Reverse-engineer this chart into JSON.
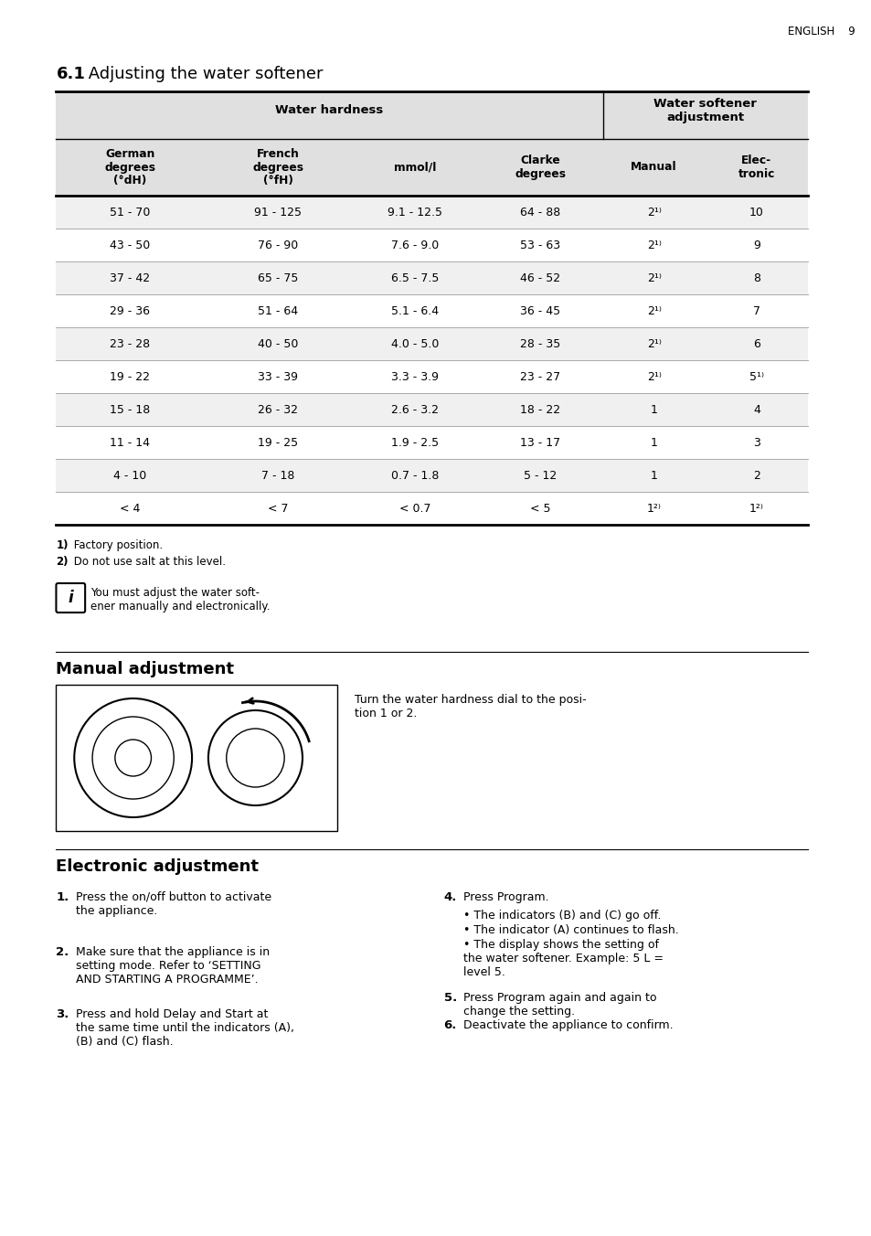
{
  "page_header": "ENGLISH    9",
  "section_title_bold": "6.1",
  "section_title_normal": " Adjusting the water softener",
  "bg_color": "#ffffff",
  "table_header_bg": "#e0e0e0",
  "table_row_bg_alt": "#f0f0f0",
  "table_row_bg_white": "#ffffff",
  "table": {
    "col_headers": [
      "German\ndegrees\n(°dH)",
      "French\ndegrees\n(°fH)",
      "mmol/l",
      "Clarke\ndegrees",
      "Manual",
      "Elec-\ntronic"
    ],
    "group_headers": [
      "Water hardness",
      "Water softener\nadjustment"
    ],
    "rows": [
      [
        "51 - 70",
        "91 - 125",
        "9.1 - 12.5",
        "64 - 88",
        "2¹⁾",
        "10"
      ],
      [
        "43 - 50",
        "76 - 90",
        "7.6 - 9.0",
        "53 - 63",
        "2¹⁾",
        "9"
      ],
      [
        "37 - 42",
        "65 - 75",
        "6.5 - 7.5",
        "46 - 52",
        "2¹⁾",
        "8"
      ],
      [
        "29 - 36",
        "51 - 64",
        "5.1 - 6.4",
        "36 - 45",
        "2¹⁾",
        "7"
      ],
      [
        "23 - 28",
        "40 - 50",
        "4.0 - 5.0",
        "28 - 35",
        "2¹⁾",
        "6"
      ],
      [
        "19 - 22",
        "33 - 39",
        "3.3 - 3.9",
        "23 - 27",
        "2¹⁾",
        "5¹⁾"
      ],
      [
        "15 - 18",
        "26 - 32",
        "2.6 - 3.2",
        "18 - 22",
        "1",
        "4"
      ],
      [
        "11 - 14",
        "19 - 25",
        "1.9 - 2.5",
        "13 - 17",
        "1",
        "3"
      ],
      [
        "4 - 10",
        "7 - 18",
        "0.7 - 1.8",
        "5 - 12",
        "1",
        "2"
      ],
      [
        "< 4",
        "< 7",
        "< 0.7",
        "< 5",
        "1²⁾",
        "1²⁾"
      ]
    ]
  },
  "footnotes": [
    "¹⁾ Factory position.",
    "²⁾ Do not use salt at this level."
  ],
  "info_text": "You must adjust the water soft-\nener manually and electronically.",
  "manual_adj_title": "Manual adjustment",
  "manual_adj_text": "Turn the water hardness dial to the posi-\ntion 1 or 2.",
  "electronic_adj_title": "Electronic adjustment",
  "electronic_steps_left": [
    [
      "1.",
      "Press the on/off button to activate\nthe appliance."
    ],
    [
      "2.",
      "Make sure that the appliance is in\nsetting mode. Refer to ‘SETTING\nAND STARTING A PROGRAMME’."
    ],
    [
      "3.",
      "Press and hold {Delay} and {Start} at\nthe same time until the indicators ({A}),\n({B}) and ({C}) flash."
    ]
  ],
  "electronic_steps_right": [
    [
      "4.",
      "Press {Program}.",
      [
        "The indicators ({B}) and ({C}) go off.",
        "The indicator ({A}) continues to flash.",
        "The display shows the setting of\nthe water softener. Example: 5 L =\nlevel 5."
      ]
    ],
    [
      "5.",
      "Press {Program} again and again to\nchange the setting.",
      []
    ],
    [
      "6.",
      "Deactivate the appliance to confirm.",
      []
    ]
  ]
}
